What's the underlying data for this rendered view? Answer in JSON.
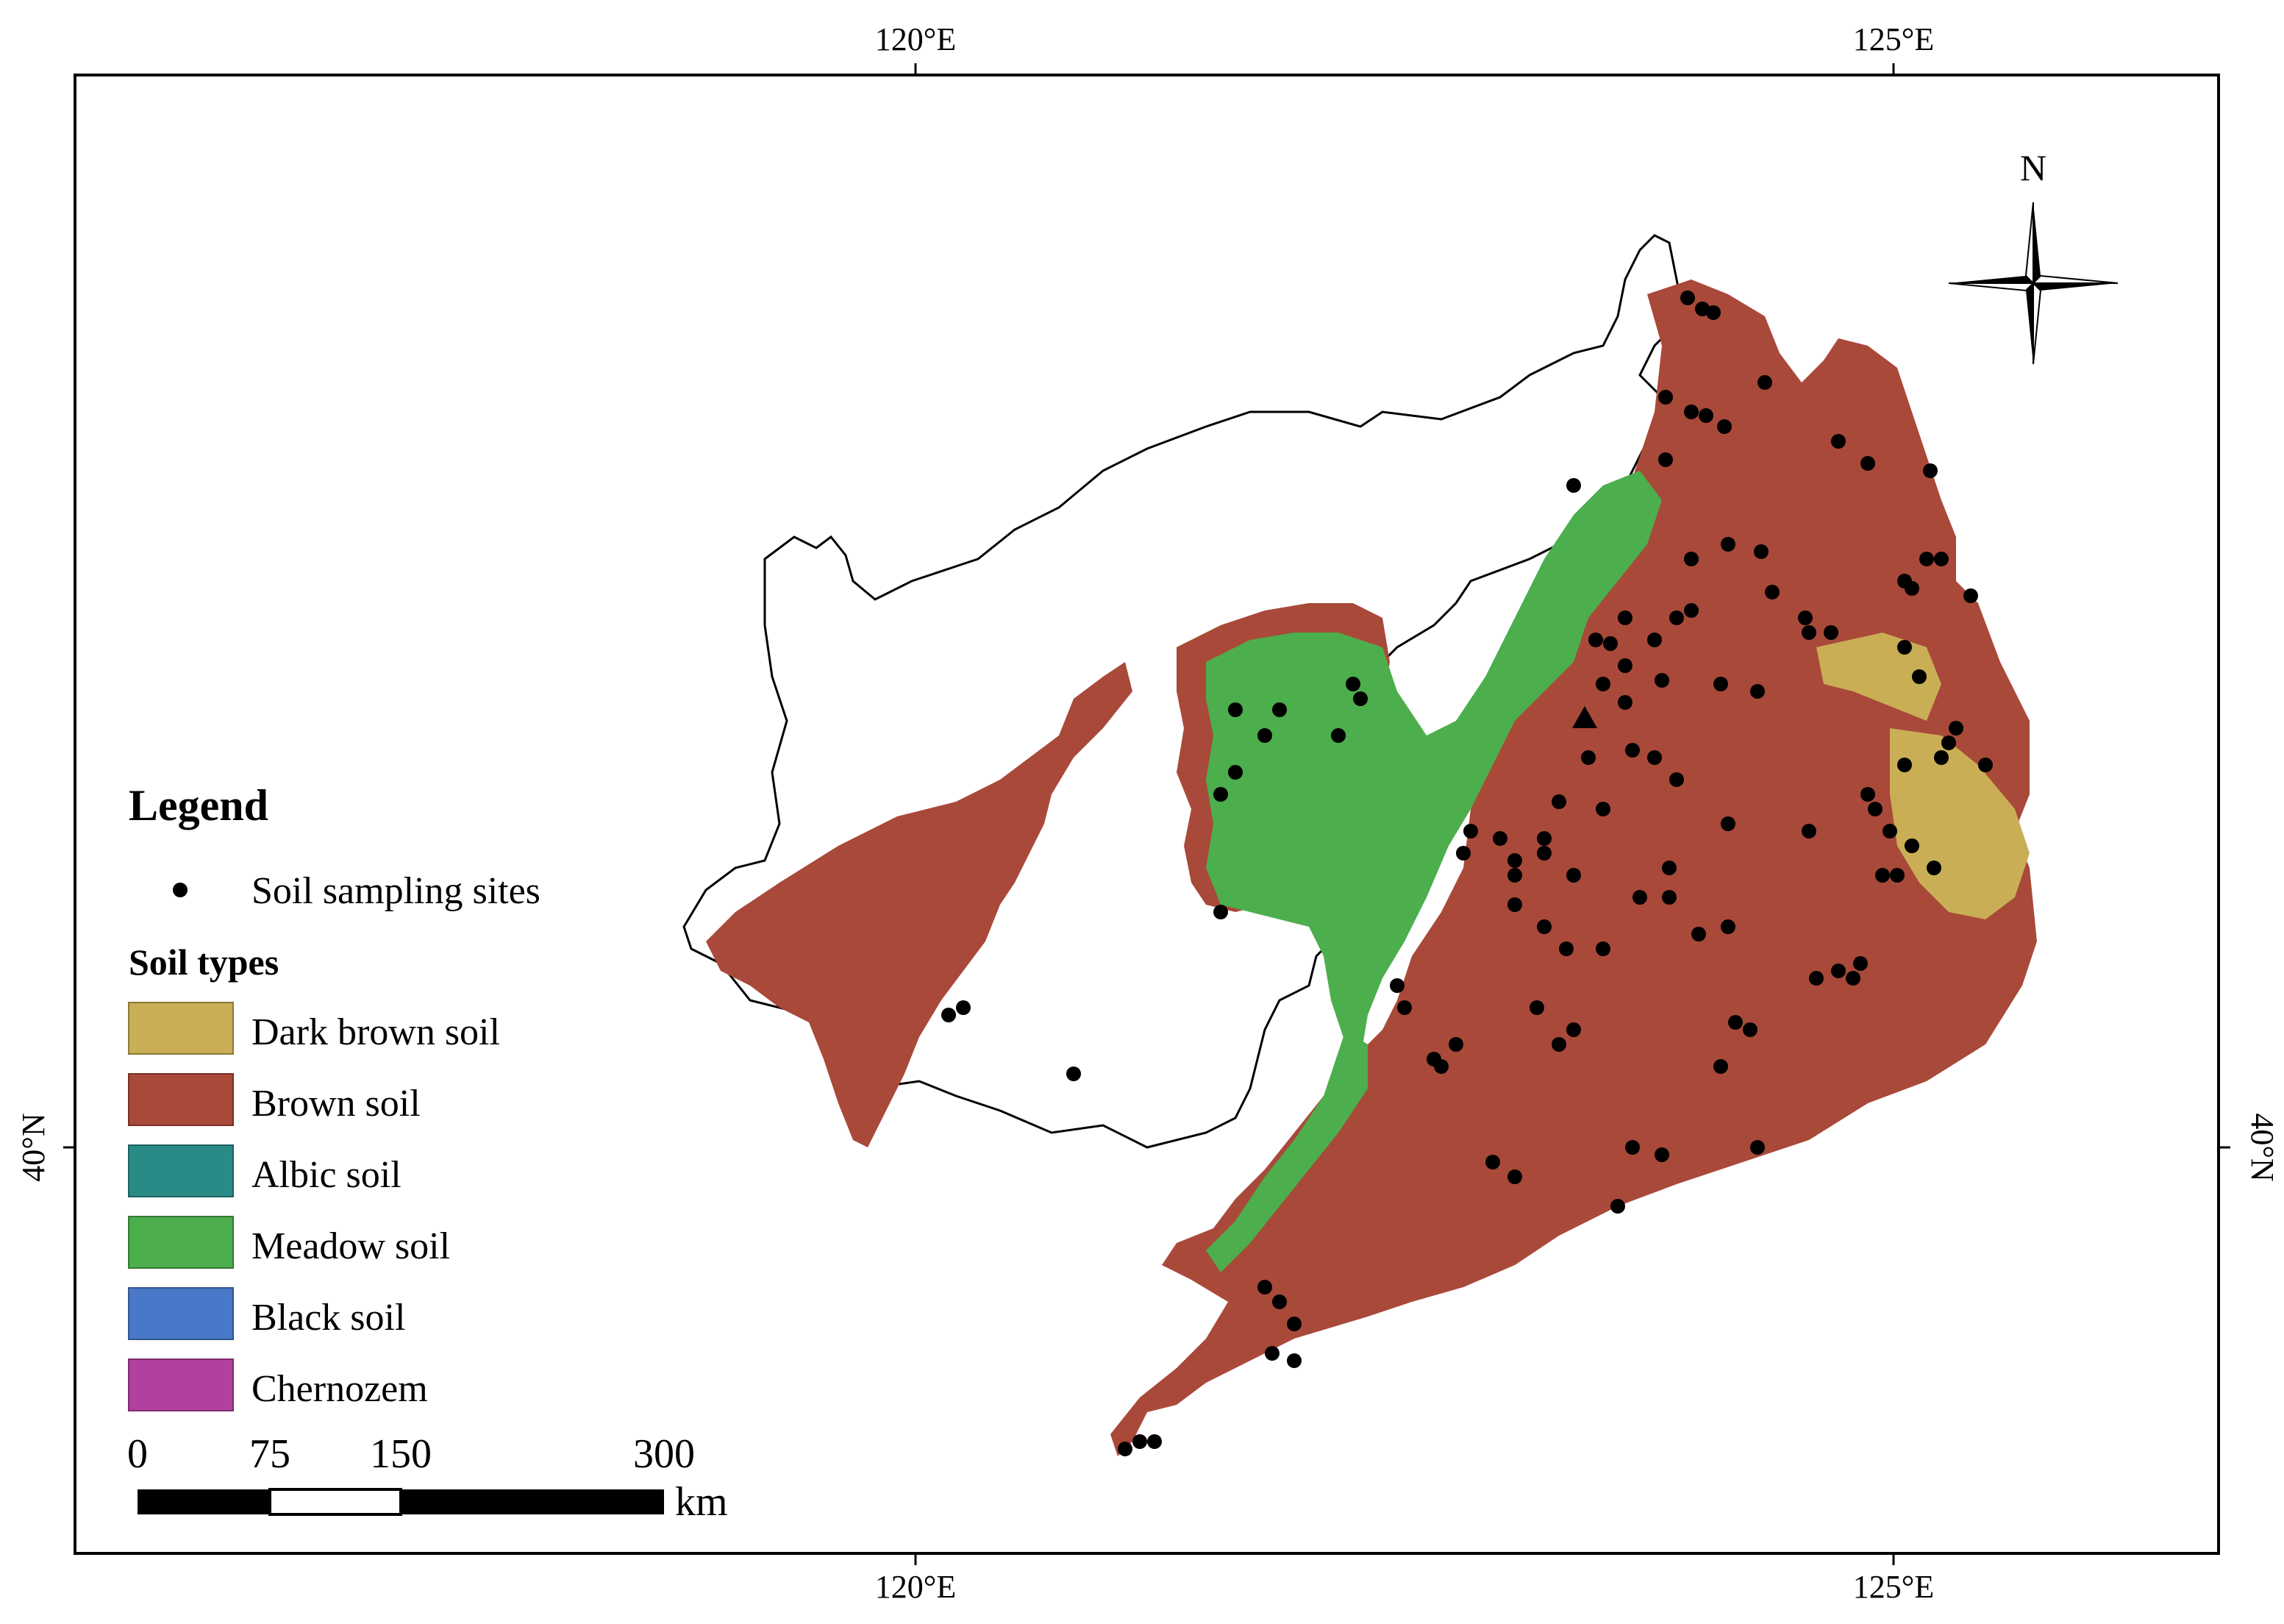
{
  "map": {
    "lon_ticks": [
      "120°E",
      "125°E"
    ],
    "lat_ticks": [
      "40°N"
    ],
    "north_label": "N"
  },
  "legend": {
    "title": "Legend",
    "point_label": "Soil sampling sites",
    "soil_types_title": "Soil types",
    "soil_types": [
      {
        "label": "Dark brown soil",
        "color": "#c9ae55"
      },
      {
        "label": "Brown soil",
        "color": "#a9493a"
      },
      {
        "label": "Albic soil",
        "color": "#2a8a86"
      },
      {
        "label": "Meadow soil",
        "color": "#4cae4c"
      },
      {
        "label": "Black soil",
        "color": "#4a78c8"
      },
      {
        "label": "Chernozem",
        "color": "#b2409e"
      }
    ]
  },
  "scale_bar": {
    "ticks": [
      "0",
      "75",
      "150",
      "300"
    ],
    "unit": "km"
  },
  "colors": {
    "brown_soil": "#a9493a",
    "meadow_soil": "#4cae4c",
    "dark_brown_soil": "#c9ae55",
    "site": "#000000"
  }
}
